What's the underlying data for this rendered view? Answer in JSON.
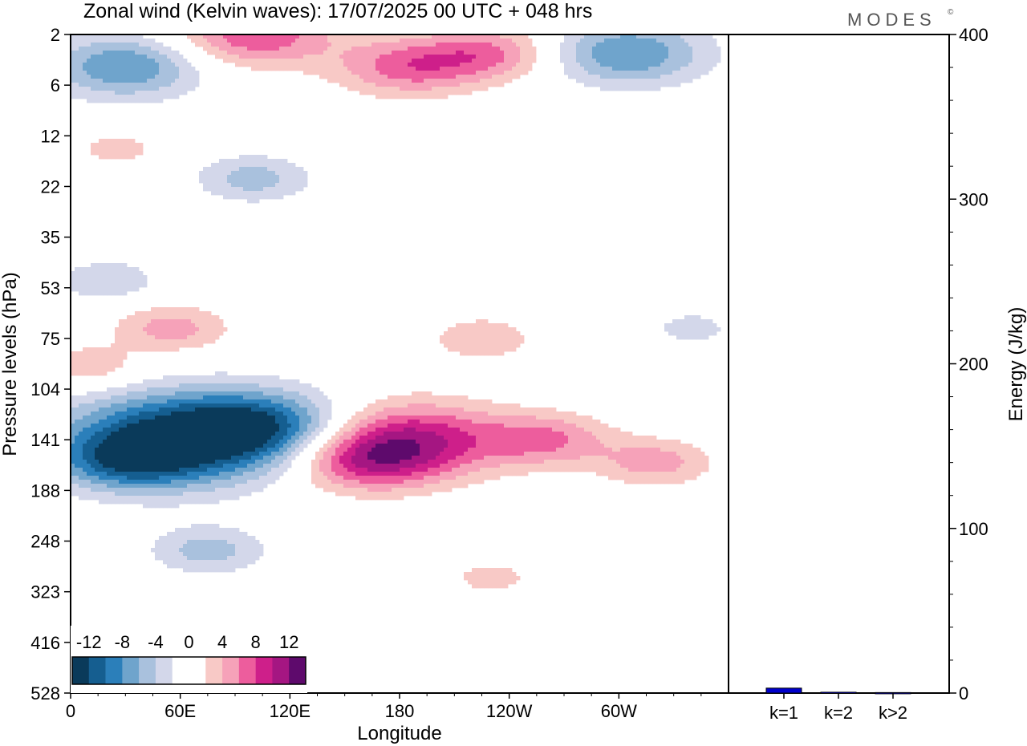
{
  "title": "Zonal wind (Kelvin waves):  17/07/2025  00 UTC  + 048 hrs",
  "logo": "MODES",
  "logo_mark": "©",
  "colors": {
    "neg": [
      "#0a3a5a",
      "#155e90",
      "#2b7fba",
      "#6fa4cc",
      "#a9c1dd",
      "#d3d7ea"
    ],
    "pos": [
      "#f8c9c6",
      "#f6a2b9",
      "#ed5d9d",
      "#ce1f8a",
      "#a51682",
      "#5e0a6c"
    ],
    "energy_bar": "#0000cc"
  },
  "chart_data": [
    {
      "type": "heatmap",
      "title": "Zonal wind (Kelvin waves):  17/07/2025  00 UTC  + 048 hrs",
      "xlabel": "Longitude",
      "ylabel": "Pressure levels (hPa)",
      "x_ticks": [
        "0",
        "60E",
        "120E",
        "180",
        "120W",
        "60W"
      ],
      "y_ticks": [
        "2",
        "6",
        "12",
        "22",
        "35",
        "53",
        "75",
        "104",
        "141",
        "188",
        "248",
        "323",
        "416",
        "528"
      ],
      "colorbar": {
        "tick_labels": [
          "-12",
          "-8",
          "-4",
          "0",
          "4",
          "8",
          "12"
        ],
        "levels": [
          -14,
          -12,
          -10,
          -8,
          -6,
          -4,
          -2,
          2,
          4,
          6,
          8,
          10,
          12,
          14
        ]
      },
      "features": [
        {
          "lon": 55,
          "lev": 141,
          "value": -13
        },
        {
          "lon": 105,
          "lev": 130,
          "value": -9
        },
        {
          "lon": 30,
          "lev": 160,
          "value": -6
        },
        {
          "lon": 75,
          "lev": 260,
          "value": -5
        },
        {
          "lon": 30,
          "lev": 4,
          "value": -8
        },
        {
          "lon": 305,
          "lev": 3,
          "value": -8
        },
        {
          "lon": 100,
          "lev": 20,
          "value": -5
        },
        {
          "lon": 20,
          "lev": 50,
          "value": -4
        },
        {
          "lon": 340,
          "lev": 70,
          "value": -3
        },
        {
          "lon": 290,
          "lev": 480,
          "value": -2
        },
        {
          "lon": 185,
          "lev": 141,
          "value": 10
        },
        {
          "lon": 160,
          "lev": 160,
          "value": 7
        },
        {
          "lon": 260,
          "lev": 141,
          "value": 6
        },
        {
          "lon": 320,
          "lev": 160,
          "value": 5
        },
        {
          "lon": 230,
          "lev": 300,
          "value": 3
        },
        {
          "lon": 225,
          "lev": 75,
          "value": 4
        },
        {
          "lon": 55,
          "lev": 70,
          "value": 5
        },
        {
          "lon": 10,
          "lev": 90,
          "value": 4
        },
        {
          "lon": 185,
          "lev": 4,
          "value": 7
        },
        {
          "lon": 230,
          "lev": 3,
          "value": 6
        },
        {
          "lon": 100,
          "lev": 2,
          "value": 8
        },
        {
          "lon": 25,
          "lev": 14,
          "value": 3
        },
        {
          "lon": 230,
          "lev": 22,
          "value": 2
        },
        {
          "lon": 105,
          "lev": 45,
          "value": 2
        }
      ]
    },
    {
      "type": "bar",
      "categories": [
        "k=1",
        "k=2",
        "k>2"
      ],
      "values": [
        3,
        0.5,
        0.3
      ],
      "ylabel": "Energy (J/kg)",
      "ylim": [
        0,
        400
      ],
      "y_ticks": [
        "0",
        "100",
        "200",
        "300",
        "400"
      ]
    }
  ]
}
